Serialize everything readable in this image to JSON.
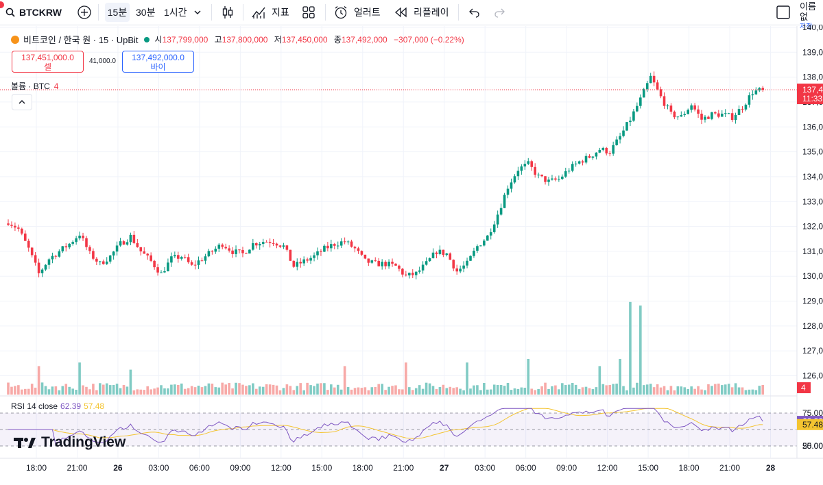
{
  "toolbar": {
    "symbol": "BTCKRW",
    "timeframes": [
      "15분",
      "30분",
      "1시간"
    ],
    "indicators_label": "지표",
    "alerts_label": "얼러트",
    "replay_label": "리플레이",
    "save_label": "이름없",
    "save_sub": "저장"
  },
  "legend": {
    "name": "비트코인 / 한국 원 · 15 · UpBit",
    "open_key": "시",
    "open": "137,799,000",
    "high_key": "고",
    "high": "137,800,000",
    "low_key": "저",
    "low": "137,450,000",
    "close_key": "종",
    "close": "137,492,000",
    "change": "−307,000 (−0.22%)"
  },
  "trade": {
    "sell_price": "137,451,000.0",
    "sell_label": "셀",
    "spread": "41,000.0",
    "buy_price": "137,492,000.0",
    "buy_label": "바이"
  },
  "volume_legend": {
    "label": "볼륨 · BTC",
    "value": "4"
  },
  "rsi_legend": {
    "label": "RSI 14 close",
    "rsi": "62.39",
    "ma": "57.48"
  },
  "brand": "TradingView",
  "colors": {
    "up": "#089981",
    "down": "#f23645",
    "up_vol": "#80cbc4",
    "down_vol": "#f7a9a7",
    "rsi": "#7e57c2",
    "rsi_ma": "#f4c430"
  },
  "chart_data": {
    "type": "candlestick",
    "title": "비트코인 / 한국 원 · 15 · UpBit",
    "y_unit": "KRW",
    "ylim": [
      125600000,
      140000000
    ],
    "y_ticks": [
      "140,0",
      "139,0",
      "138,0",
      "137,0",
      "136,0",
      "135,0",
      "134,0",
      "133,0",
      "132,0",
      "131,0",
      "130,0",
      "129,0",
      "128,0",
      "127,0",
      "126,0"
    ],
    "y_tick_values": [
      140000000,
      139000000,
      138000000,
      137000000,
      136000000,
      135000000,
      134000000,
      133000000,
      132000000,
      131000000,
      130000000,
      129000000,
      128000000,
      127000000,
      126000000
    ],
    "x_ticks": [
      "18:00",
      "21:00",
      "26",
      "03:00",
      "06:00",
      "09:00",
      "12:00",
      "15:00",
      "18:00",
      "21:00",
      "27",
      "03:00",
      "06:00",
      "09:00",
      "12:00",
      "15:00",
      "18:00",
      "21:00",
      "28"
    ],
    "x_tick_bar_index": [
      0,
      12,
      24,
      36,
      48,
      60,
      72,
      84,
      96,
      108,
      120,
      132,
      144,
      156,
      168,
      180,
      192,
      204,
      216
    ],
    "bar_interval": "15m",
    "waypoints": [
      [
        0,
        132200000
      ],
      [
        3,
        131900000
      ],
      [
        6,
        131100000
      ],
      [
        9,
        130100000
      ],
      [
        12,
        130700000
      ],
      [
        15,
        131000000
      ],
      [
        18,
        131300000
      ],
      [
        21,
        131700000
      ],
      [
        24,
        130900000
      ],
      [
        27,
        130500000
      ],
      [
        30,
        130800000
      ],
      [
        33,
        131300000
      ],
      [
        36,
        131600000
      ],
      [
        39,
        131000000
      ],
      [
        42,
        130600000
      ],
      [
        45,
        130100000
      ],
      [
        48,
        130700000
      ],
      [
        51,
        130800000
      ],
      [
        54,
        130400000
      ],
      [
        57,
        130700000
      ],
      [
        60,
        131000000
      ],
      [
        63,
        131300000
      ],
      [
        66,
        131000000
      ],
      [
        69,
        130900000
      ],
      [
        72,
        131300000
      ],
      [
        75,
        131400000
      ],
      [
        78,
        131400000
      ],
      [
        81,
        131200000
      ],
      [
        84,
        130400000
      ],
      [
        87,
        130600000
      ],
      [
        90,
        130800000
      ],
      [
        93,
        131100000
      ],
      [
        96,
        131300000
      ],
      [
        99,
        131400000
      ],
      [
        102,
        131100000
      ],
      [
        105,
        130600000
      ],
      [
        108,
        130500000
      ],
      [
        111,
        130500000
      ],
      [
        114,
        130400000
      ],
      [
        117,
        130000000
      ],
      [
        120,
        130100000
      ],
      [
        123,
        130500000
      ],
      [
        126,
        131000000
      ],
      [
        129,
        130900000
      ],
      [
        132,
        130200000
      ],
      [
        135,
        130500000
      ],
      [
        138,
        131200000
      ],
      [
        141,
        131600000
      ],
      [
        144,
        132500000
      ],
      [
        147,
        133600000
      ],
      [
        150,
        134300000
      ],
      [
        153,
        134500000
      ],
      [
        156,
        134000000
      ],
      [
        159,
        133800000
      ],
      [
        162,
        133900000
      ],
      [
        165,
        134300000
      ],
      [
        168,
        134600000
      ],
      [
        171,
        134800000
      ],
      [
        174,
        135100000
      ],
      [
        177,
        135000000
      ],
      [
        180,
        135600000
      ],
      [
        183,
        136300000
      ],
      [
        186,
        137100000
      ],
      [
        189,
        138000000
      ],
      [
        192,
        137200000
      ],
      [
        195,
        136500000
      ],
      [
        198,
        136400000
      ],
      [
        201,
        136900000
      ],
      [
        204,
        136300000
      ],
      [
        207,
        136500000
      ],
      [
        210,
        136500000
      ],
      [
        213,
        136400000
      ],
      [
        216,
        136800000
      ],
      [
        219,
        137400000
      ],
      [
        222,
        137500000
      ]
    ],
    "last_price": 137492000,
    "volume": {
      "label": "볼륨 · BTC",
      "last": 4,
      "spikes": [
        [
          9,
          8
        ],
        [
          21,
          9
        ],
        [
          36,
          7
        ],
        [
          99,
          8
        ],
        [
          117,
          9
        ],
        [
          135,
          9
        ],
        [
          153,
          10
        ],
        [
          174,
          8
        ],
        [
          180,
          10
        ],
        [
          183,
          26
        ],
        [
          186,
          25
        ]
      ]
    },
    "rsi": {
      "period": 14,
      "last": 62.39,
      "ma_last": 57.48,
      "levels": [
        75,
        50,
        25
      ],
      "y_ticks": [
        "75.00",
        "50.00",
        "25.00"
      ]
    }
  }
}
